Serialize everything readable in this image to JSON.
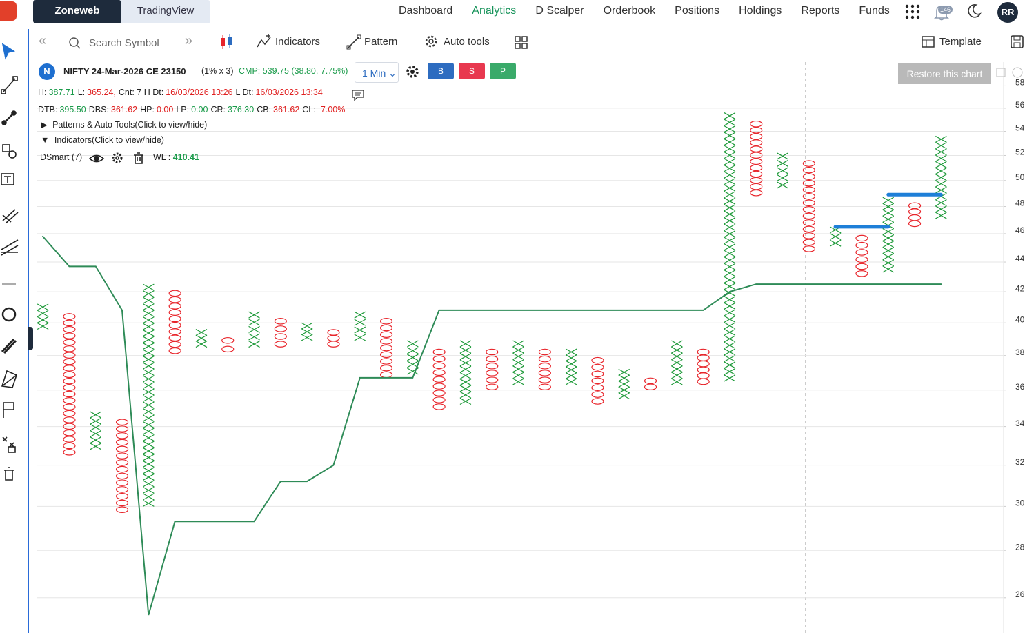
{
  "header": {
    "tabs": [
      "Zoneweb",
      "TradingView"
    ],
    "nav": [
      "Dashboard",
      "Analytics",
      "D Scalper",
      "Orderbook",
      "Positions",
      "Holdings",
      "Reports",
      "Funds"
    ],
    "notification_count": "146",
    "avatar": "RR"
  },
  "toolbar": {
    "search_placeholder": "Search Symbol",
    "indicators": "Indicators",
    "pattern": "Pattern",
    "auto_tools": "Auto tools",
    "template": "Template"
  },
  "chart_info": {
    "symbol_badge": "N",
    "symbol": "NIFTY 24-Mar-2026 CE 23150",
    "box": "(1% x 3)",
    "cmp": "CMP: 539.75 (38.80, 7.75%)",
    "interval": "1 Min",
    "buttons": [
      "B",
      "S",
      "P"
    ],
    "restore": "Restore this chart",
    "stats1": [
      {
        "label": "H:",
        "value": "387.71",
        "color": "#1a9b4a"
      },
      {
        "label": "L:",
        "value": "365.24,",
        "color": "#e02020"
      },
      {
        "label": "Cnt: 7 H Dt:",
        "value": "16/03/2026 13:26",
        "color": "#e02020"
      },
      {
        "label": "L Dt:",
        "value": "16/03/2026 13:34",
        "color": "#e02020"
      }
    ],
    "stats2": [
      {
        "label": "DTB:",
        "value": "395.50",
        "color": "#1a9b4a"
      },
      {
        "label": "DBS:",
        "value": "361.62",
        "color": "#e02020"
      },
      {
        "label": "HP:",
        "value": "0.00",
        "color": "#e02020"
      },
      {
        "label": "LP:",
        "value": "0.00",
        "color": "#1a9b4a"
      },
      {
        "label": "CR:",
        "value": "376.30",
        "color": "#1a9b4a"
      },
      {
        "label": "CB:",
        "value": "361.62",
        "color": "#e02020"
      },
      {
        "label": "CL:",
        "value": "-7.00%",
        "color": "#e02020"
      }
    ],
    "patterns_toggle": "Patterns & Auto Tools(Click to view/hide)",
    "indicators_toggle": "Indicators(Click to view/hide)",
    "indicator_name": "DSmart (7)",
    "wl_label": "WL :",
    "wl_value": "410.41"
  },
  "chart_data": {
    "type": "point_and_figure",
    "log_scale": true,
    "grid": true,
    "ylim": [
      246,
      602
    ],
    "yticks": [
      {
        "value": 580,
        "label": "58"
      },
      {
        "value": 560,
        "label": "56"
      },
      {
        "value": 540,
        "label": "54"
      },
      {
        "value": 520,
        "label": "52"
      },
      {
        "value": 500,
        "label": "50"
      },
      {
        "value": 480,
        "label": "48"
      },
      {
        "value": 460,
        "label": "46"
      },
      {
        "value": 440,
        "label": "44"
      },
      {
        "value": 420,
        "label": "42"
      },
      {
        "value": 400,
        "label": "40"
      },
      {
        "value": 380,
        "label": "38"
      },
      {
        "value": 360,
        "label": "36"
      },
      {
        "value": 340,
        "label": "34"
      },
      {
        "value": 320,
        "label": "32"
      },
      {
        "value": 300,
        "label": "30"
      },
      {
        "value": 280,
        "label": "28"
      },
      {
        "value": 260,
        "label": "26"
      }
    ],
    "x_color": "#1f9a3a",
    "o_color": "#e8242a",
    "column_types": [
      "X",
      "O",
      "X",
      "O",
      "X",
      "O",
      "X",
      "O",
      "X",
      "O",
      "X",
      "O",
      "X",
      "O",
      "X",
      "O",
      "X",
      "O",
      "X",
      "O",
      "X",
      "O",
      "X",
      "O",
      "X",
      "O",
      "X",
      "O",
      "X",
      "O",
      "X",
      "O",
      "X",
      "O",
      "X"
    ],
    "highs": [
      412,
      406,
      348,
      344,
      425,
      421,
      396,
      391,
      407,
      403,
      400,
      396,
      407,
      403,
      389,
      384,
      389,
      384,
      389,
      384,
      384,
      379,
      372,
      367,
      389,
      384,
      556,
      549,
      522,
      516,
      465,
      459,
      487,
      483,
      536
    ],
    "lows": [
      396,
      325,
      328,
      297,
      300,
      381,
      385,
      382,
      385,
      385,
      389,
      385,
      389,
      367,
      369,
      349,
      352,
      360,
      363,
      360,
      363,
      352,
      355,
      360,
      363,
      363,
      365,
      488,
      494,
      447,
      451,
      430,
      433,
      465,
      471
    ],
    "series": [
      {
        "name": "DSmart (7)",
        "color": "#2e8b57",
        "values": [
          458,
          437,
          437,
          408,
          253,
          293,
          293,
          293,
          293,
          312,
          312,
          320,
          367,
          367,
          367,
          408,
          408,
          408,
          408,
          408,
          408,
          408,
          408,
          408,
          408,
          408,
          420,
          425,
          425,
          425,
          425,
          425,
          425,
          425,
          425
        ]
      }
    ],
    "levels": [
      {
        "color": "#1e7fd8",
        "values": [
          null,
          null,
          null,
          null,
          null,
          null,
          null,
          null,
          null,
          null,
          null,
          null,
          null,
          null,
          null,
          null,
          null,
          null,
          null,
          null,
          null,
          null,
          null,
          null,
          null,
          null,
          null,
          null,
          null,
          null,
          465,
          465,
          465,
          null,
          null
        ]
      },
      {
        "color": "#1e7fd8",
        "values": [
          null,
          null,
          null,
          null,
          null,
          null,
          null,
          null,
          null,
          null,
          null,
          null,
          null,
          null,
          null,
          null,
          null,
          null,
          null,
          null,
          null,
          null,
          null,
          null,
          null,
          null,
          null,
          null,
          null,
          null,
          null,
          null,
          489,
          489,
          489
        ]
      }
    ]
  }
}
